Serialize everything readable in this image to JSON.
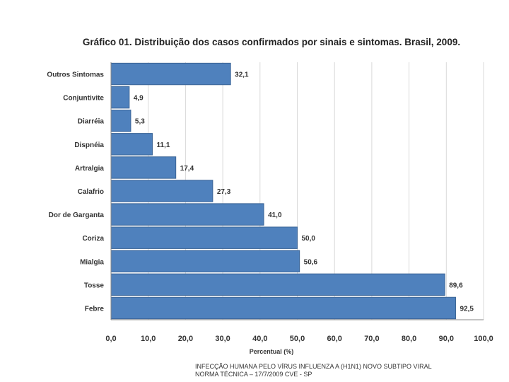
{
  "chart_data": {
    "type": "bar",
    "orientation": "horizontal",
    "title": "Gráfico 01. Distribuição dos casos confirmados por sinais e sintomas. Brasil, 2009.",
    "xlabel": "Percentual (%)",
    "ylabel": "",
    "xlim": [
      0,
      100
    ],
    "x_ticks": [
      "0,0",
      "10,0",
      "20,0",
      "30,0",
      "40,0",
      "50,0",
      "60,0",
      "70,0",
      "80,0",
      "90,0",
      "100,0"
    ],
    "grid": true,
    "categories": [
      "Outros Sintomas",
      "Conjuntivite",
      "Diarréia",
      "Dispnéia",
      "Artralgia",
      "Calafrio",
      "Dor de Garganta",
      "Coriza",
      "Mialgia",
      "Tosse",
      "Febre"
    ],
    "values": [
      32.1,
      4.9,
      5.3,
      11.1,
      17.4,
      27.3,
      41.0,
      50.0,
      50.6,
      89.6,
      92.5
    ],
    "value_labels": [
      "32,1",
      "4,9",
      "5,3",
      "11,1",
      "17,4",
      "27,3",
      "41,0",
      "50,0",
      "50,6",
      "89,6",
      "92,5"
    ],
    "bar_color": "#4f81bd",
    "bar_edge_color": "#3a6496",
    "grid_color": "#d9d9d9"
  },
  "footer": {
    "line1": "INFECÇÃO HUMANA PELO VÍRUS INFLUENZA A (H1N1) NOVO SUBTIPO VIRAL",
    "line2": "NORMA TÉCNICA – 17/7/2009 CVE - SP"
  }
}
